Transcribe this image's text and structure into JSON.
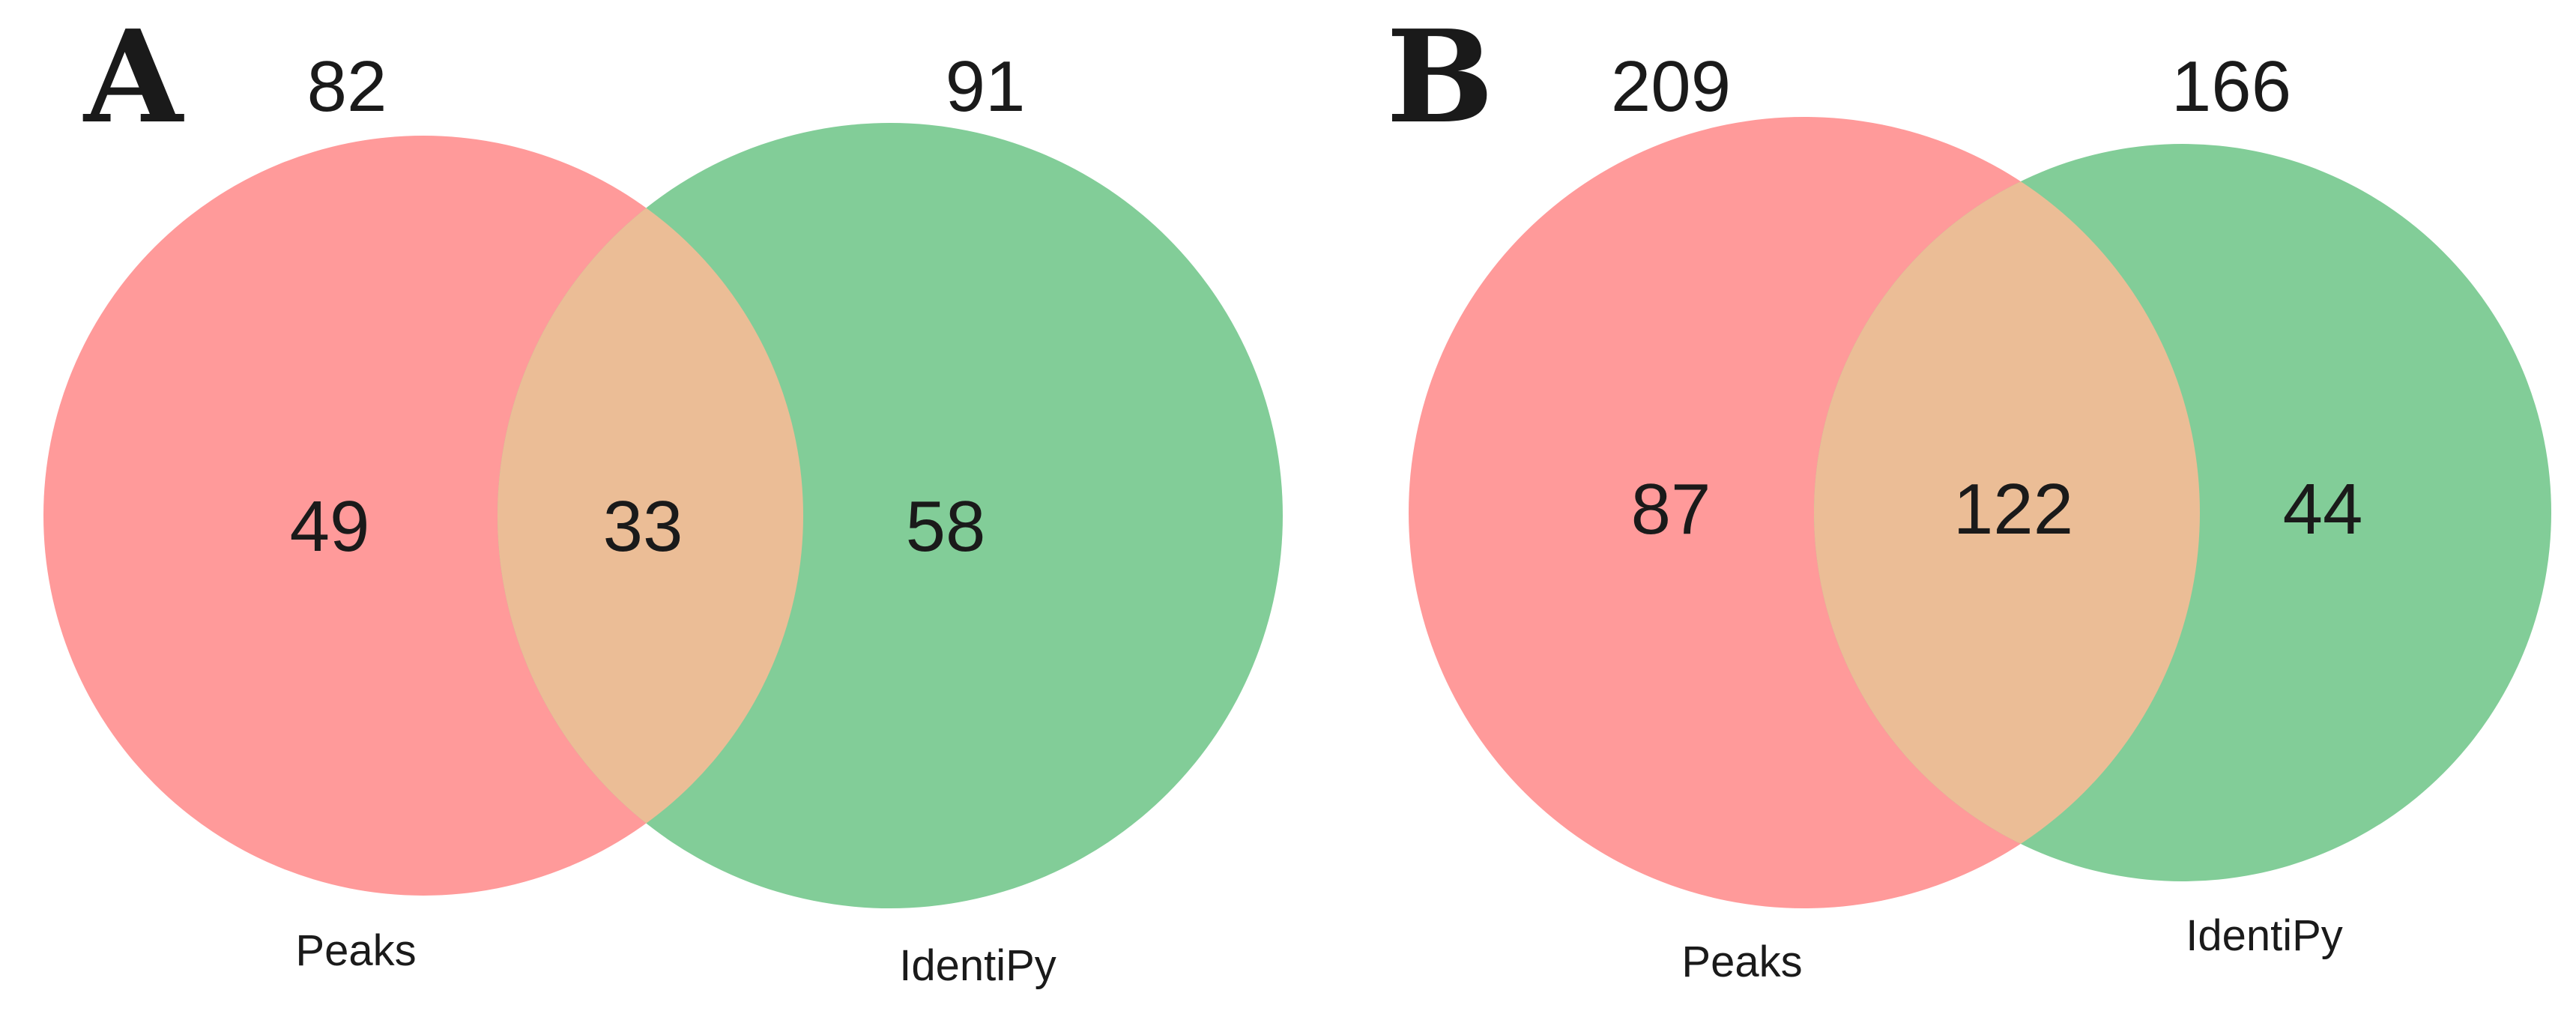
{
  "colors": {
    "peaks": "#ff9a9a",
    "identipy": "#82cd98",
    "overlap": "#ebbd96",
    "text": "#1a1a1a"
  },
  "panels": [
    {
      "letter": "A",
      "sets": [
        {
          "label": "Peaks",
          "total": "82",
          "only": "49"
        },
        {
          "label": "IdentiPy",
          "total": "91",
          "only": "58"
        }
      ],
      "overlap": "33"
    },
    {
      "letter": "B",
      "sets": [
        {
          "label": "Peaks",
          "total": "209",
          "only": "87"
        },
        {
          "label": "IdentiPy",
          "total": "166",
          "only": "44"
        }
      ],
      "overlap": "122"
    }
  ]
}
